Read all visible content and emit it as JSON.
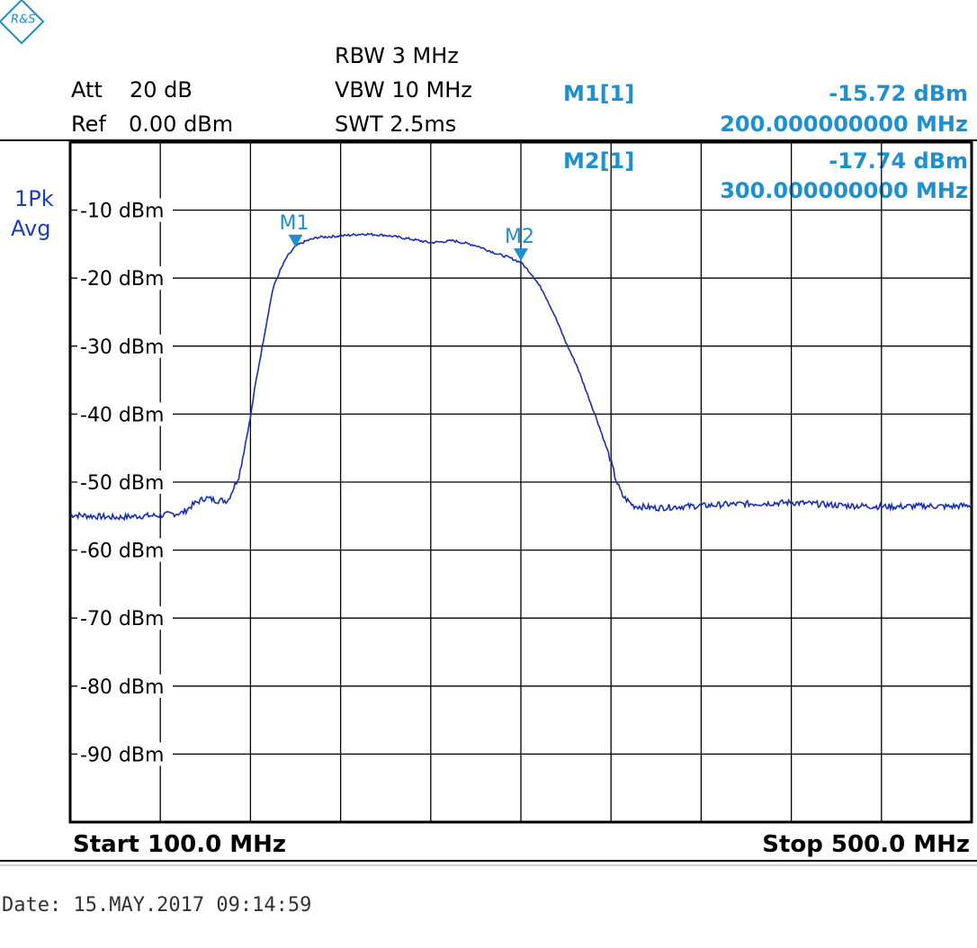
{
  "logo": {
    "text": "R&S"
  },
  "settings": {
    "att_label": "Att",
    "att_value": "20 dB",
    "ref_label": "Ref",
    "ref_value": "0.00 dBm",
    "rbw": "RBW 3 MHz",
    "vbw": "VBW 10 MHz",
    "swt": "SWT 2.5ms"
  },
  "markers_readout": [
    {
      "name": "M1[1]",
      "level": "-15.72 dBm",
      "freq": "200.000000000 MHz"
    },
    {
      "name": "M2[1]",
      "level": "-17.74 dBm",
      "freq": "300.000000000 MHz"
    }
  ],
  "trace_mode": {
    "line1": "1Pk",
    "line2": "Avg"
  },
  "footer": {
    "start": "Start 100.0 MHz",
    "stop": "Stop 500.0 MHz",
    "date": "Date: 15.MAY.2017   09:14:59"
  },
  "colors": {
    "trace": "#1a2fb0",
    "marker": "#1e8fcf",
    "grid": "#000000"
  },
  "chart_data": {
    "type": "line",
    "xlim": [
      100,
      500
    ],
    "ylim": [
      -100,
      0
    ],
    "grid": true,
    "x_divisions": 10,
    "y_divisions": 10,
    "y_tick_labels": [
      {
        "value": -10,
        "label": "-10 dBm"
      },
      {
        "value": -20,
        "label": "-20 dBm"
      },
      {
        "value": -30,
        "label": "-30 dBm"
      },
      {
        "value": -40,
        "label": "-40 dBm"
      },
      {
        "value": -50,
        "label": "-50 dBm"
      },
      {
        "value": -60,
        "label": "-60 dBm"
      },
      {
        "value": -70,
        "label": "-70 dBm"
      },
      {
        "value": -80,
        "label": "-80 dBm"
      },
      {
        "value": -90,
        "label": "-90 dBm"
      }
    ],
    "markers": [
      {
        "label": "M1",
        "x": 200,
        "y": -15.72
      },
      {
        "label": "M2",
        "x": 300,
        "y": -17.74
      }
    ],
    "series": [
      {
        "x": [
          100,
          110,
          120,
          130,
          140,
          150,
          155,
          160,
          165,
          170,
          175,
          180,
          182,
          185,
          188,
          190,
          193,
          196,
          200,
          205,
          210,
          220,
          230,
          240,
          250,
          260,
          270,
          280,
          290,
          295,
          300,
          305,
          310,
          315,
          320,
          325,
          330,
          335,
          340,
          342,
          345,
          350,
          360,
          370,
          380,
          390,
          400,
          410,
          420,
          430,
          440,
          450,
          460,
          470,
          480,
          490,
          500
        ],
        "y": [
          -54.8,
          -55.0,
          -55.2,
          -55.0,
          -54.9,
          -54.5,
          -53.2,
          -52.3,
          -52.7,
          -52.7,
          -49.0,
          -40.5,
          -36.0,
          -30.5,
          -25.0,
          -21.5,
          -19.0,
          -17.0,
          -15.3,
          -14.5,
          -14.0,
          -13.8,
          -13.5,
          -13.7,
          -14.2,
          -14.8,
          -14.5,
          -15.2,
          -16.5,
          -17.0,
          -17.7,
          -19.5,
          -22.0,
          -25.5,
          -29.5,
          -33.0,
          -37.5,
          -42.0,
          -47.0,
          -49.5,
          -52.0,
          -53.5,
          -53.8,
          -53.6,
          -53.5,
          -53.3,
          -53.2,
          -53.1,
          -53.0,
          -53.2,
          -53.4,
          -53.5,
          -53.6,
          -53.6,
          -53.5,
          -53.6,
          -53.4
        ]
      }
    ]
  }
}
